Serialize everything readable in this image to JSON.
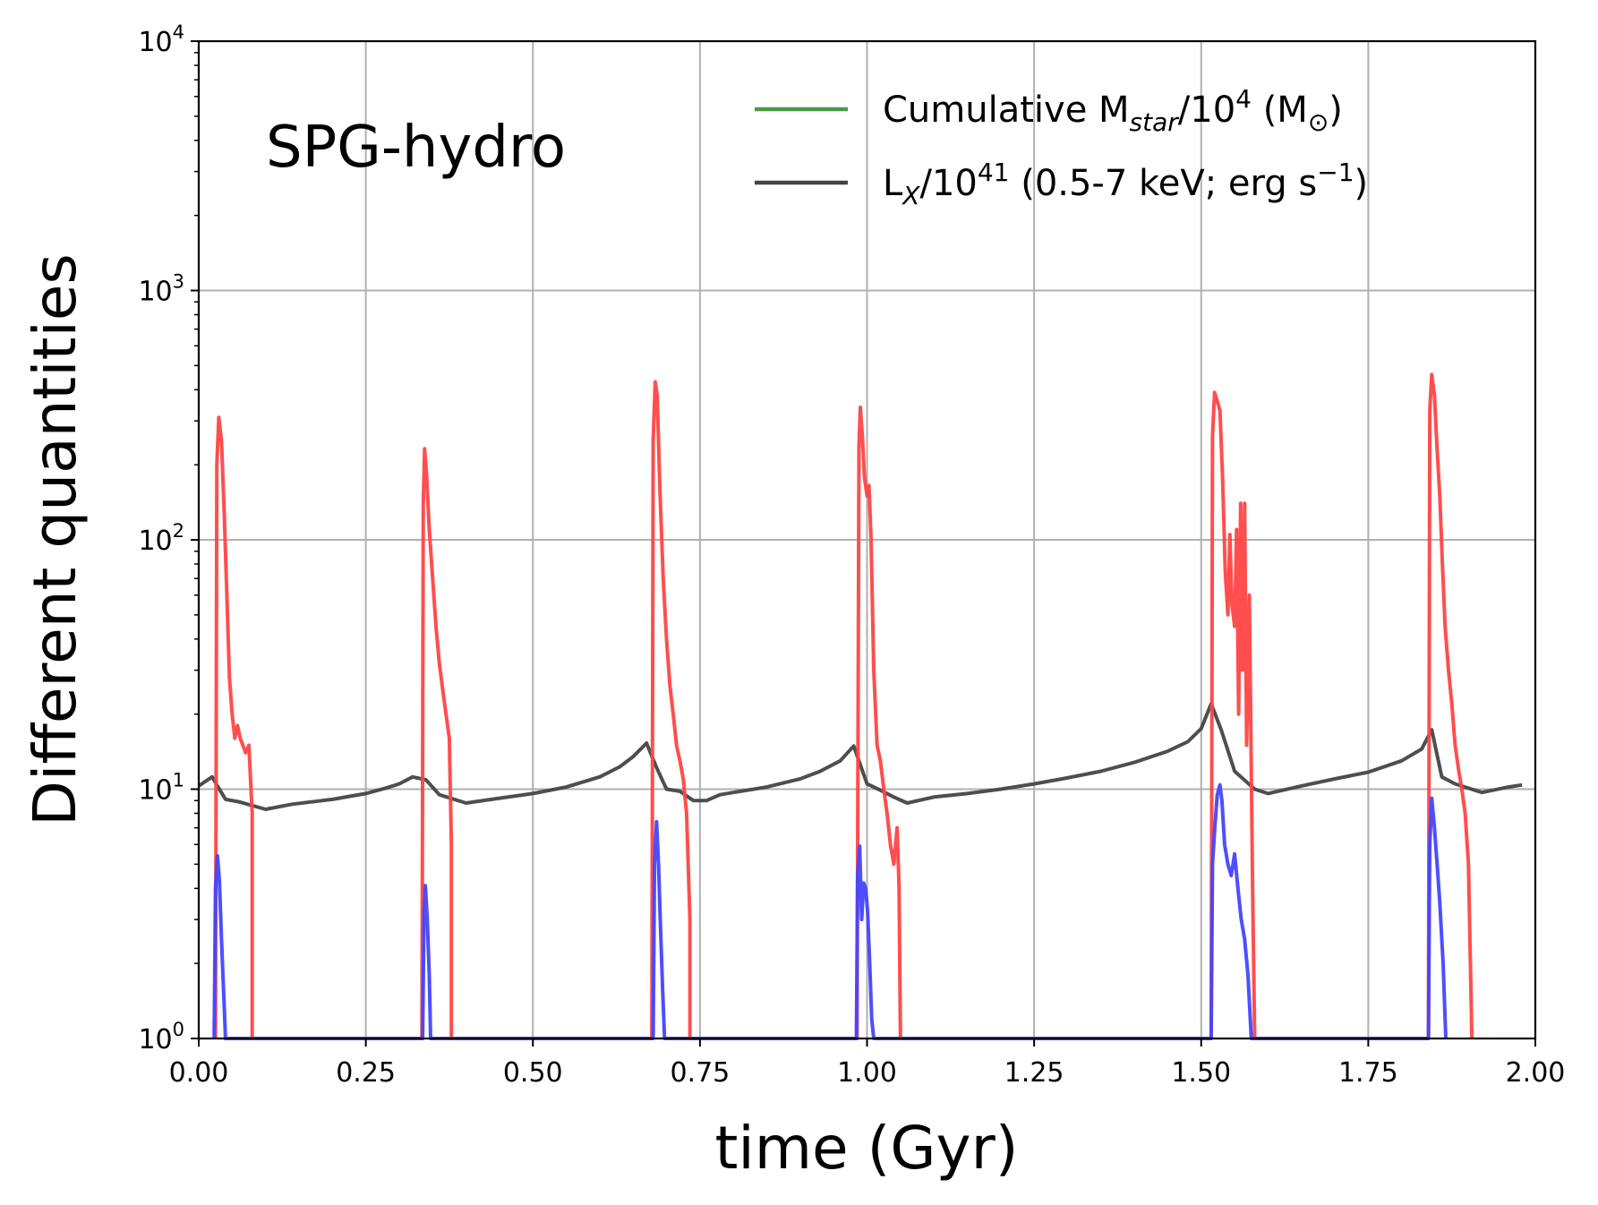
{
  "chart_data": {
    "type": "line",
    "title": "",
    "annotation": "SPG-hydro",
    "xlabel": "time (Gyr)",
    "ylabel": "Different quantities",
    "xlim": [
      0,
      2
    ],
    "ylim": [
      1,
      10000
    ],
    "yscale": "log",
    "grid": true,
    "legend_position": "top-right",
    "x_ticks": [
      {
        "value": 0.0,
        "label": "0.00"
      },
      {
        "value": 0.25,
        "label": "0.25"
      },
      {
        "value": 0.5,
        "label": "0.50"
      },
      {
        "value": 0.75,
        "label": "0.75"
      },
      {
        "value": 1.0,
        "label": "1.00"
      },
      {
        "value": 1.25,
        "label": "1.25"
      },
      {
        "value": 1.5,
        "label": "1.50"
      },
      {
        "value": 1.75,
        "label": "1.75"
      },
      {
        "value": 2.0,
        "label": "2.00"
      }
    ],
    "y_ticks": [
      {
        "value": 1,
        "base": "10",
        "exp": "0"
      },
      {
        "value": 10,
        "base": "10",
        "exp": "1"
      },
      {
        "value": 100,
        "base": "10",
        "exp": "2"
      },
      {
        "value": 1000,
        "base": "10",
        "exp": "3"
      },
      {
        "value": 10000,
        "base": "10",
        "exp": "4"
      }
    ],
    "legend": [
      {
        "series": "mstar",
        "parts": [
          {
            "t": "Cumulative M",
            "s": ""
          },
          {
            "t": "star",
            "s": "sub"
          },
          {
            "t": "/10",
            "s": ""
          },
          {
            "t": "4",
            "s": "sup"
          },
          {
            "t": " (M",
            "s": ""
          },
          {
            "t": "⊙",
            "s": "sub"
          },
          {
            "t": ")",
            "s": ""
          }
        ]
      },
      {
        "series": "lx",
        "parts": [
          {
            "t": "L",
            "s": ""
          },
          {
            "t": "X",
            "s": "sub"
          },
          {
            "t": "/10",
            "s": ""
          },
          {
            "t": "41",
            "s": "sup"
          },
          {
            "t": " (0.5-7 keV; erg s",
            "s": ""
          },
          {
            "t": "−1",
            "s": "sup"
          },
          {
            "t": ")",
            "s": ""
          }
        ]
      }
    ],
    "series": [
      {
        "id": "mstar",
        "name": "Cumulative Mstar/10^4 (Msun)",
        "color": "#4a9a48",
        "values": []
      },
      {
        "id": "lx",
        "name": "LX/10^41 (0.5-7 keV; erg s^-1)",
        "color": "#444444",
        "x": [
          0.0,
          0.02,
          0.04,
          0.06,
          0.1,
          0.14,
          0.2,
          0.25,
          0.28,
          0.3,
          0.32,
          0.34,
          0.36,
          0.4,
          0.45,
          0.5,
          0.55,
          0.6,
          0.63,
          0.65,
          0.67,
          0.685,
          0.7,
          0.72,
          0.74,
          0.76,
          0.78,
          0.8,
          0.85,
          0.9,
          0.93,
          0.96,
          0.98,
          1.0,
          1.02,
          1.04,
          1.06,
          1.1,
          1.15,
          1.2,
          1.25,
          1.3,
          1.35,
          1.4,
          1.45,
          1.48,
          1.5,
          1.515,
          1.53,
          1.55,
          1.58,
          1.6,
          1.65,
          1.7,
          1.75,
          1.8,
          1.83,
          1.845,
          1.86,
          1.88,
          1.92,
          1.96,
          1.98
        ],
        "values": [
          10.3,
          11.2,
          9.1,
          8.9,
          8.3,
          8.7,
          9.1,
          9.6,
          10.1,
          10.5,
          11.2,
          10.9,
          9.5,
          8.8,
          9.2,
          9.6,
          10.2,
          11.2,
          12.3,
          13.5,
          15.3,
          12.2,
          10.0,
          9.8,
          9.0,
          9.0,
          9.5,
          9.7,
          10.2,
          11.0,
          11.8,
          13.0,
          14.9,
          10.5,
          9.9,
          9.3,
          8.8,
          9.3,
          9.6,
          10.0,
          10.5,
          11.1,
          11.8,
          12.8,
          14.2,
          15.5,
          17.5,
          22.0,
          17.3,
          11.8,
          10.0,
          9.6,
          10.3,
          11.0,
          11.7,
          13.0,
          14.5,
          17.3,
          11.2,
          10.5,
          9.7,
          10.2,
          10.4
        ]
      },
      {
        "id": "red",
        "name": "",
        "color": "#ff4545",
        "x": [
          0.025,
          0.027,
          0.03,
          0.034,
          0.038,
          0.042,
          0.046,
          0.05,
          0.054,
          0.058,
          0.062,
          0.066,
          0.07,
          0.075,
          0.08,
          0.08,
          0.334,
          0.336,
          0.338,
          0.341,
          0.345,
          0.35,
          0.355,
          0.36,
          0.366,
          0.37,
          0.375,
          0.378,
          0.378,
          0.678,
          0.68,
          0.683,
          0.686,
          0.69,
          0.695,
          0.7,
          0.705,
          0.71,
          0.715,
          0.72,
          0.725,
          0.73,
          0.735,
          0.735,
          0.985,
          0.988,
          0.99,
          0.993,
          0.996,
          1.0,
          1.003,
          1.006,
          1.01,
          1.015,
          1.02,
          1.025,
          1.03,
          1.035,
          1.04,
          1.045,
          1.048,
          1.05,
          1.05,
          1.515,
          1.517,
          1.52,
          1.524,
          1.528,
          1.532,
          1.536,
          1.54,
          1.543,
          1.546,
          1.55,
          1.553,
          1.556,
          1.559,
          1.562,
          1.565,
          1.568,
          1.572,
          1.577,
          1.58,
          1.58,
          1.84,
          1.842,
          1.845,
          1.849,
          1.853,
          1.857,
          1.861,
          1.865,
          1.87,
          1.875,
          1.88,
          1.885,
          1.89,
          1.895,
          1.9,
          1.905,
          1.905
        ],
        "values": [
          1,
          200,
          310,
          250,
          130,
          60,
          28,
          20,
          16,
          18,
          16,
          15,
          14,
          15,
          8,
          1,
          1,
          140,
          232,
          180,
          110,
          70,
          45,
          32,
          24,
          20,
          16,
          6,
          1,
          1,
          250,
          430,
          380,
          160,
          70,
          40,
          26,
          20,
          15,
          13,
          11,
          8,
          3,
          1,
          1,
          240,
          340,
          260,
          180,
          150,
          165,
          100,
          30,
          15,
          13,
          10,
          8,
          6,
          5,
          7,
          4,
          1,
          1,
          1,
          260,
          390,
          360,
          330,
          180,
          75,
          50,
          105,
          55,
          45,
          110,
          20,
          140,
          30,
          140,
          15,
          60,
          4,
          1,
          1,
          1,
          330,
          460,
          380,
          230,
          150,
          80,
          45,
          30,
          22,
          15,
          12,
          10,
          8,
          5,
          1,
          1
        ]
      },
      {
        "id": "blue",
        "name": "",
        "color": "#4444ff",
        "x": [
          0.023,
          0.025,
          0.028,
          0.031,
          0.034,
          0.037,
          0.04,
          0.042,
          0.335,
          0.337,
          0.339,
          0.342,
          0.345,
          0.347,
          0.68,
          0.682,
          0.685,
          0.688,
          0.691,
          0.694,
          0.697,
          0.984,
          0.986,
          0.989,
          0.992,
          0.995,
          0.998,
          1.001,
          1.004,
          1.007,
          1.01,
          1.515,
          1.517,
          1.52,
          1.524,
          1.528,
          1.531,
          1.535,
          1.54,
          1.545,
          1.55,
          1.555,
          1.56,
          1.565,
          1.57,
          1.575,
          1.84,
          1.842,
          1.845,
          1.849,
          1.853,
          1.857,
          1.862,
          1.866
        ],
        "values": [
          1,
          4.0,
          5.4,
          4.3,
          2.5,
          1.6,
          1.0,
          1.0,
          1,
          3.0,
          4.1,
          3.0,
          1.8,
          1.0,
          1,
          5.0,
          7.4,
          5.0,
          2.8,
          1.6,
          1.0,
          1,
          4.5,
          5.9,
          3.0,
          4.2,
          4.0,
          3.2,
          2.0,
          1.2,
          1.0,
          1,
          5.0,
          6.8,
          9.5,
          10.4,
          9.0,
          6.0,
          5.0,
          4.5,
          5.5,
          4.0,
          3.0,
          2.5,
          1.8,
          1.0,
          1,
          6.0,
          9.2,
          7.0,
          5.0,
          3.5,
          2.0,
          1.0
        ]
      }
    ]
  }
}
